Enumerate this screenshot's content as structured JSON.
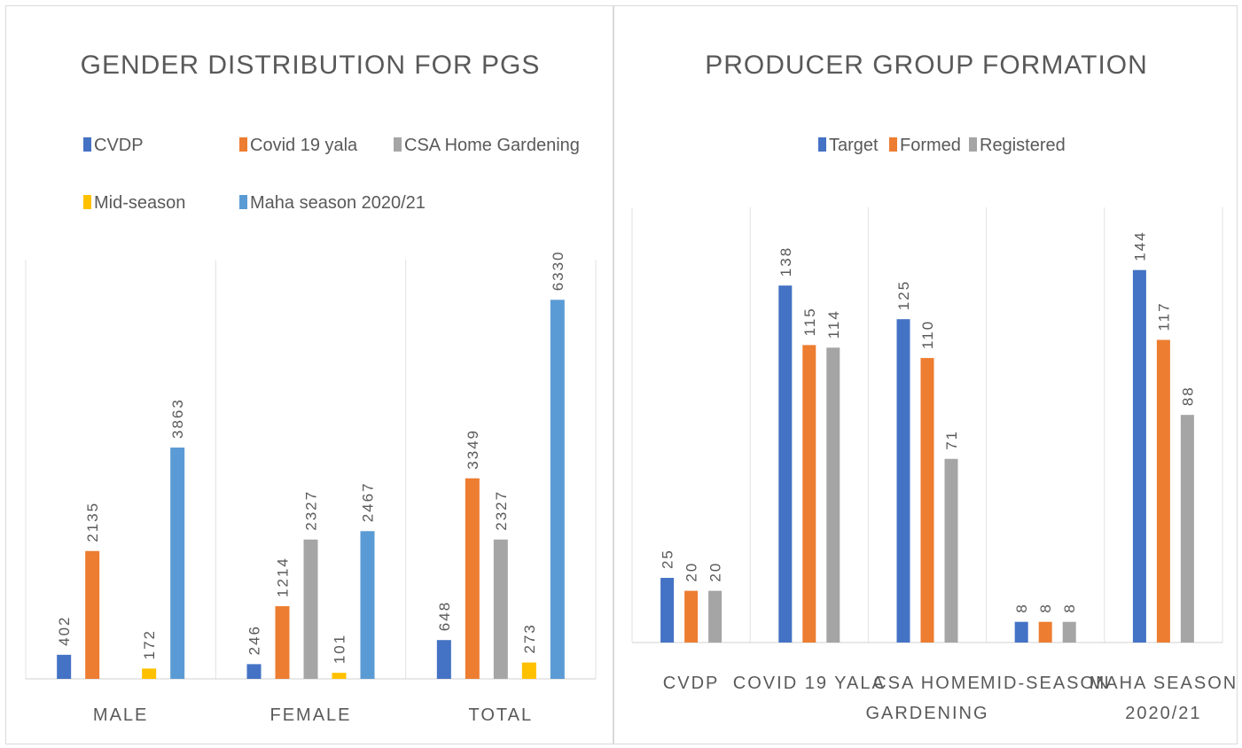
{
  "chart_data": [
    {
      "type": "bar",
      "title": "GENDER DISTRIBUTION FOR PGS",
      "categories": [
        "MALE",
        "FEMALE",
        "TOTAL"
      ],
      "series": [
        {
          "name": "CVDP",
          "color": "#4472c4",
          "values": [
            402,
            246,
            648
          ]
        },
        {
          "name": "Covid 19 yala",
          "color": "#ed7d31",
          "values": [
            2135,
            1214,
            3349
          ]
        },
        {
          "name": "CSA  Home Gardening",
          "color": "#a5a5a5",
          "values": [
            null,
            2327,
            2327
          ]
        },
        {
          "name": "Mid-season",
          "color": "#ffc000",
          "values": [
            172,
            101,
            273
          ]
        },
        {
          "name": "Maha season 2020/21",
          "color": "#5b9bd5",
          "values": [
            3863,
            2467,
            6330
          ]
        }
      ],
      "ylim": [
        0,
        7000
      ],
      "grid": false,
      "legend_position": "top"
    },
    {
      "type": "bar",
      "title": "PRODUCER GROUP FORMATION",
      "categories": [
        [
          "CVDP"
        ],
        [
          "COVID 19 YALA"
        ],
        [
          "CSA  HOME",
          "GARDENING"
        ],
        [
          "MID-SEASON"
        ],
        [
          "MAHA SEASON",
          "2020/21"
        ]
      ],
      "series": [
        {
          "name": "Target",
          "color": "#4472c4",
          "values": [
            25,
            138,
            125,
            8,
            144
          ]
        },
        {
          "name": "Formed",
          "color": "#ed7d31",
          "values": [
            20,
            115,
            110,
            8,
            117
          ]
        },
        {
          "name": "Registered",
          "color": "#a5a5a5",
          "values": [
            20,
            114,
            71,
            8,
            88
          ]
        }
      ],
      "ylim": [
        0,
        160
      ],
      "grid": false,
      "legend_position": "top"
    }
  ]
}
